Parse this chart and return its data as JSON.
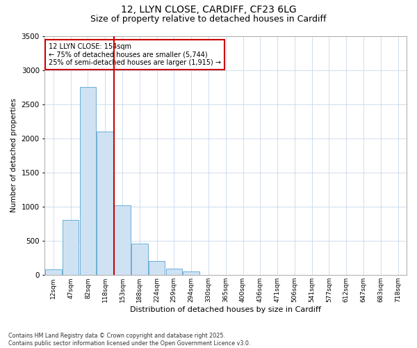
{
  "title_line1": "12, LLYN CLOSE, CARDIFF, CF23 6LG",
  "title_line2": "Size of property relative to detached houses in Cardiff",
  "xlabel": "Distribution of detached houses by size in Cardiff",
  "ylabel": "Number of detached properties",
  "bar_color": "#cfe2f3",
  "bar_edge_color": "#6aaed6",
  "vline_color": "#cc0000",
  "vline_x": 3.5,
  "annotation_text": "12 LLYN CLOSE: 154sqm\n← 75% of detached houses are smaller (5,744)\n25% of semi-detached houses are larger (1,915) →",
  "annotation_box_color": "#cc0000",
  "categories": [
    "12sqm",
    "47sqm",
    "82sqm",
    "118sqm",
    "153sqm",
    "188sqm",
    "224sqm",
    "259sqm",
    "294sqm",
    "330sqm",
    "365sqm",
    "400sqm",
    "436sqm",
    "471sqm",
    "506sqm",
    "541sqm",
    "577sqm",
    "612sqm",
    "647sqm",
    "683sqm",
    "718sqm"
  ],
  "values": [
    80,
    810,
    2750,
    2100,
    1020,
    460,
    210,
    90,
    50,
    0,
    0,
    0,
    0,
    0,
    0,
    0,
    0,
    0,
    0,
    0,
    0
  ],
  "ylim": [
    0,
    3500
  ],
  "yticks": [
    0,
    500,
    1000,
    1500,
    2000,
    2500,
    3000,
    3500
  ],
  "background_color": "#ffffff",
  "grid_color": "#c8d8ea",
  "footer_text": "Contains HM Land Registry data © Crown copyright and database right 2025.\nContains public sector information licensed under the Open Government Licence v3.0.",
  "title_fontsize": 10,
  "subtitle_fontsize": 9
}
